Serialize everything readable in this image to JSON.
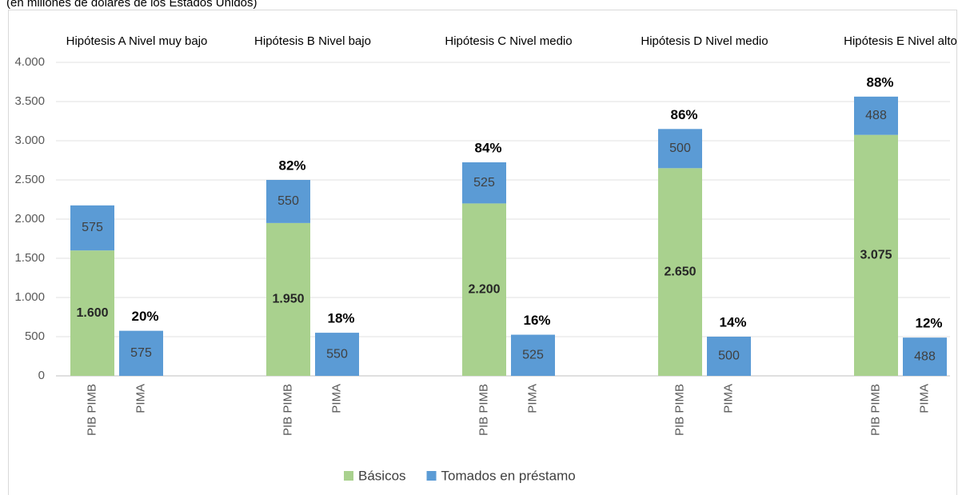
{
  "chart_data": {
    "type": "stacked_bar",
    "subtitle": "(en millones de dólares de los Estados Unidos)",
    "group_labels": [
      "Hipótesis A Nivel muy bajo",
      "Hipótesis B Nivel bajo",
      "Hipótesis C Nivel medio",
      "Hipótesis D Nivel medio",
      "Hipótesis E Nivel alto"
    ],
    "categories": [
      "PIB PIMB",
      "PIMA",
      "PIB PIMB",
      "PIMA",
      "PIB PIMB",
      "PIMA",
      "PIB PIMB",
      "PIMA",
      "PIB PIMB",
      "PIMA"
    ],
    "series": [
      {
        "name": "Básicos",
        "color": "#a9d18e",
        "values": [
          1600,
          null,
          1950,
          null,
          2200,
          null,
          2650,
          null,
          3075,
          null
        ],
        "value_labels": [
          "1.600",
          null,
          "1.950",
          null,
          "2.200",
          null,
          "2.650",
          null,
          "3.075",
          null
        ]
      },
      {
        "name": "Tomados en préstamo",
        "color": "#5b9bd5",
        "values": [
          575,
          575,
          550,
          550,
          525,
          525,
          500,
          500,
          488,
          488
        ]
      }
    ],
    "shares": {
      "values": [
        null,
        20,
        82,
        18,
        84,
        16,
        86,
        14,
        88,
        12
      ],
      "value_labels": [
        null,
        "20%",
        "82%",
        "18%",
        "84%",
        "16%",
        "86%",
        "14%",
        "88%",
        "12%"
      ]
    },
    "ylim": [
      0,
      4000
    ],
    "yticks": [
      0,
      500,
      {
        "value": 1000,
        "label": "1.000"
      },
      {
        "value": 1500,
        "label": "1.500"
      },
      {
        "value": 2000,
        "label": "2.000"
      },
      {
        "value": 2500,
        "label": "2.500"
      },
      {
        "value": 3000,
        "label": "3.000"
      },
      {
        "value": 3500,
        "label": "3.500"
      },
      {
        "value": 4000,
        "label": "4.000"
      }
    ],
    "grid": true,
    "legend": "bottom"
  }
}
